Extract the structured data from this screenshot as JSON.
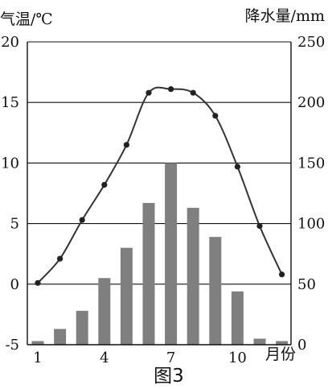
{
  "chart_data": {
    "type": "bar",
    "title": "",
    "caption": "图3",
    "xlabel": "月份",
    "categories": [
      1,
      2,
      3,
      4,
      5,
      6,
      7,
      8,
      9,
      10,
      11,
      12
    ],
    "x_tick_labels": [
      "1",
      "4",
      "7",
      "10"
    ],
    "series": [
      {
        "name": "气温",
        "type": "line",
        "axis": "left",
        "values": [
          0.1,
          2.1,
          5.3,
          8.2,
          11.5,
          15.8,
          16.1,
          15.8,
          13.9,
          9.7,
          4.8,
          0.8
        ]
      },
      {
        "name": "降水量",
        "type": "bar",
        "axis": "right",
        "values": [
          3,
          13,
          28,
          55,
          80,
          117,
          150,
          113,
          89,
          44,
          5,
          3
        ]
      }
    ],
    "y_left": {
      "label": "气温/℃",
      "range": [
        -5,
        20
      ],
      "ticks": [
        -5,
        0,
        5,
        10,
        15,
        20
      ]
    },
    "y_right": {
      "label": "降水量/mm",
      "range": [
        0,
        250
      ],
      "ticks": [
        0,
        50,
        100,
        150,
        200,
        250
      ]
    },
    "grid": true,
    "colors": {
      "bar": "#7f7f7f",
      "line": "#333333",
      "axis": "#111111"
    }
  }
}
